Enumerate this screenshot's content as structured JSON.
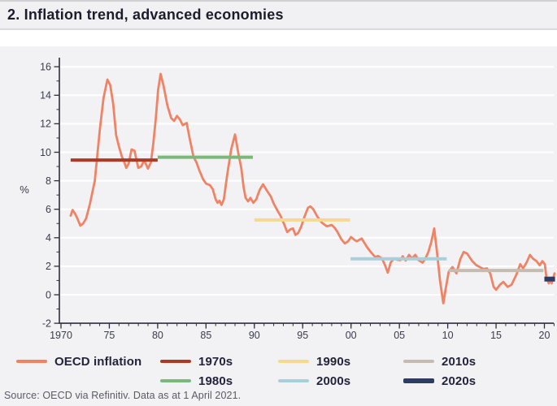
{
  "header": {
    "title": "2. Inflation trend, advanced economies"
  },
  "footer": {
    "source": "Source: OECD via Refinitiv. Data as at 1 April 2021."
  },
  "colors": {
    "titlebar_bg": "#f1f1f3",
    "panel_bg": "#f2f2f4",
    "gridline": "#ffffff",
    "axis": "#2e2e3e",
    "tick_label": "#3b3b4d",
    "oecd_line": "#ef8366",
    "avg_1970s": "#a93b28",
    "avg_1980s": "#7cb87c",
    "avg_1990s": "#f5d98e",
    "avg_2000s": "#a9cfda",
    "avg_2010s": "#c4bcb0",
    "avg_2020s": "#2c3c63"
  },
  "chart_data": {
    "type": "line",
    "title": "2. Inflation trend, advanced economies",
    "xlabel": "",
    "ylabel": "%",
    "ylim": [
      -2,
      16
    ],
    "xlim": [
      1969.6,
      2021.3
    ],
    "grid": "horizontal white gridlines every 2 units",
    "legend_position": "bottom",
    "y_ticks": [
      {
        "v": 16,
        "label": "16"
      },
      {
        "v": 14,
        "label": "14"
      },
      {
        "v": 12,
        "label": "12"
      },
      {
        "v": 10,
        "label": "10"
      },
      {
        "v": 8,
        "label": "8"
      },
      {
        "v": 6,
        "label": "6"
      },
      {
        "v": 4,
        "label": "4"
      },
      {
        "v": 2,
        "label": "2"
      },
      {
        "v": 0,
        "label": "0"
      },
      {
        "v": -2,
        "label": "-2"
      }
    ],
    "y_minor_ticks": [
      15,
      13,
      11,
      9,
      7,
      5,
      3,
      1,
      -1
    ],
    "x_ticks": [
      {
        "t": 1970,
        "label": "1970"
      },
      {
        "t": 1975,
        "label": "75"
      },
      {
        "t": 1980,
        "label": "80"
      },
      {
        "t": 1985,
        "label": "85"
      },
      {
        "t": 1990,
        "label": "90"
      },
      {
        "t": 1995,
        "label": "95"
      },
      {
        "t": 2000,
        "label": "00"
      },
      {
        "t": 2005,
        "label": "05"
      },
      {
        "t": 2010,
        "label": "10"
      },
      {
        "t": 2015,
        "label": "15"
      },
      {
        "t": 2020,
        "label": "20"
      }
    ],
    "x_minor_range": [
      1970,
      2021
    ],
    "series": [
      {
        "name": "OECD inflation",
        "color": "#ef8366",
        "unit": "% year-on-year",
        "points": [
          [
            1971.0,
            5.55
          ],
          [
            1971.2,
            5.95
          ],
          [
            1971.45,
            5.7
          ],
          [
            1971.7,
            5.35
          ],
          [
            1972.0,
            4.85
          ],
          [
            1972.3,
            5.0
          ],
          [
            1972.6,
            5.35
          ],
          [
            1973.0,
            6.4
          ],
          [
            1973.5,
            8.0
          ],
          [
            1974.0,
            11.5
          ],
          [
            1974.4,
            13.8
          ],
          [
            1974.8,
            15.1
          ],
          [
            1975.1,
            14.7
          ],
          [
            1975.4,
            13.4
          ],
          [
            1975.7,
            11.2
          ],
          [
            1976.0,
            10.4
          ],
          [
            1976.3,
            9.7
          ],
          [
            1976.55,
            9.3
          ],
          [
            1976.75,
            8.9
          ],
          [
            1977.0,
            9.2
          ],
          [
            1977.3,
            10.2
          ],
          [
            1977.6,
            10.1
          ],
          [
            1978.0,
            8.9
          ],
          [
            1978.3,
            9.0
          ],
          [
            1978.6,
            9.45
          ],
          [
            1979.0,
            8.85
          ],
          [
            1979.3,
            9.3
          ],
          [
            1979.55,
            10.6
          ],
          [
            1979.8,
            12.3
          ],
          [
            1980.05,
            14.4
          ],
          [
            1980.3,
            15.5
          ],
          [
            1980.6,
            14.7
          ],
          [
            1981.0,
            13.3
          ],
          [
            1981.4,
            12.4
          ],
          [
            1981.7,
            12.2
          ],
          [
            1982.0,
            12.55
          ],
          [
            1982.3,
            12.3
          ],
          [
            1982.6,
            11.9
          ],
          [
            1983.0,
            12.05
          ],
          [
            1983.3,
            11.0
          ],
          [
            1983.7,
            9.7
          ],
          [
            1984.0,
            9.3
          ],
          [
            1984.3,
            8.75
          ],
          [
            1984.7,
            8.1
          ],
          [
            1985.0,
            7.8
          ],
          [
            1985.4,
            7.7
          ],
          [
            1985.7,
            7.4
          ],
          [
            1986.0,
            6.7
          ],
          [
            1986.2,
            6.45
          ],
          [
            1986.4,
            6.6
          ],
          [
            1986.6,
            6.3
          ],
          [
            1986.85,
            6.7
          ],
          [
            1987.2,
            8.45
          ],
          [
            1987.6,
            10.2
          ],
          [
            1988.0,
            11.25
          ],
          [
            1988.35,
            9.9
          ],
          [
            1988.65,
            8.9
          ],
          [
            1988.9,
            7.5
          ],
          [
            1989.1,
            6.8
          ],
          [
            1989.35,
            6.55
          ],
          [
            1989.6,
            6.8
          ],
          [
            1989.9,
            6.45
          ],
          [
            1990.2,
            6.7
          ],
          [
            1990.55,
            7.35
          ],
          [
            1990.9,
            7.75
          ],
          [
            1991.3,
            7.3
          ],
          [
            1991.7,
            6.9
          ],
          [
            1992.0,
            6.4
          ],
          [
            1992.4,
            5.9
          ],
          [
            1992.7,
            5.55
          ],
          [
            1993.05,
            5.0
          ],
          [
            1993.4,
            4.4
          ],
          [
            1993.75,
            4.6
          ],
          [
            1994.0,
            4.65
          ],
          [
            1994.25,
            4.2
          ],
          [
            1994.55,
            4.35
          ],
          [
            1994.85,
            4.8
          ],
          [
            1995.2,
            5.5
          ],
          [
            1995.55,
            6.1
          ],
          [
            1995.8,
            6.2
          ],
          [
            1996.1,
            6.0
          ],
          [
            1996.5,
            5.5
          ],
          [
            1997.0,
            5.05
          ],
          [
            1997.5,
            4.8
          ],
          [
            1998.0,
            4.9
          ],
          [
            1998.3,
            4.7
          ],
          [
            1998.6,
            4.4
          ],
          [
            1999.0,
            3.9
          ],
          [
            1999.35,
            3.6
          ],
          [
            1999.7,
            3.75
          ],
          [
            2000.0,
            4.05
          ],
          [
            2000.35,
            3.85
          ],
          [
            2000.6,
            3.75
          ],
          [
            2001.1,
            3.95
          ],
          [
            2001.7,
            3.3
          ],
          [
            2002.1,
            2.95
          ],
          [
            2002.5,
            2.65
          ],
          [
            2002.8,
            2.72
          ],
          [
            2003.2,
            2.55
          ],
          [
            2003.5,
            2.1
          ],
          [
            2003.8,
            1.55
          ],
          [
            2004.1,
            2.25
          ],
          [
            2004.45,
            2.55
          ],
          [
            2004.8,
            2.45
          ],
          [
            2005.1,
            2.42
          ],
          [
            2005.35,
            2.7
          ],
          [
            2005.65,
            2.4
          ],
          [
            2006.0,
            2.8
          ],
          [
            2006.3,
            2.55
          ],
          [
            2006.65,
            2.8
          ],
          [
            2007.0,
            2.42
          ],
          [
            2007.4,
            2.25
          ],
          [
            2007.7,
            2.55
          ],
          [
            2008.0,
            3.0
          ],
          [
            2008.3,
            3.7
          ],
          [
            2008.6,
            4.65
          ],
          [
            2008.9,
            2.95
          ],
          [
            2009.2,
            1.0
          ],
          [
            2009.55,
            -0.6
          ],
          [
            2009.8,
            0.45
          ],
          [
            2010.1,
            1.6
          ],
          [
            2010.5,
            1.95
          ],
          [
            2010.9,
            1.5
          ],
          [
            2011.3,
            2.5
          ],
          [
            2011.65,
            3.0
          ],
          [
            2012.0,
            2.9
          ],
          [
            2012.5,
            2.4
          ],
          [
            2012.9,
            2.1
          ],
          [
            2013.3,
            1.95
          ],
          [
            2013.7,
            1.8
          ],
          [
            2014.05,
            1.85
          ],
          [
            2014.4,
            1.5
          ],
          [
            2014.75,
            0.55
          ],
          [
            2015.0,
            0.35
          ],
          [
            2015.4,
            0.7
          ],
          [
            2015.75,
            0.9
          ],
          [
            2016.2,
            0.55
          ],
          [
            2016.6,
            0.7
          ],
          [
            2017.1,
            1.4
          ],
          [
            2017.5,
            2.15
          ],
          [
            2017.8,
            1.85
          ],
          [
            2018.15,
            2.25
          ],
          [
            2018.5,
            2.8
          ],
          [
            2018.8,
            2.55
          ],
          [
            2019.2,
            2.35
          ],
          [
            2019.5,
            2.07
          ],
          [
            2019.8,
            2.36
          ],
          [
            2020.05,
            2.13
          ],
          [
            2020.2,
            1.26
          ],
          [
            2020.45,
            0.8
          ],
          [
            2020.6,
            1.1
          ],
          [
            2020.75,
            0.8
          ],
          [
            2021.05,
            1.5
          ]
        ]
      }
    ],
    "decade_averages": [
      {
        "name": "1970s",
        "start": 1971.0,
        "end": 1980.0,
        "value": 9.45,
        "color": "#a93b28",
        "thickness": 4
      },
      {
        "name": "1980s",
        "start": 1980.0,
        "end": 1989.85,
        "value": 9.65,
        "color": "#7cb87c",
        "thickness": 4
      },
      {
        "name": "1990s",
        "start": 1990.0,
        "end": 1999.9,
        "value": 5.25,
        "color": "#f5d98e",
        "thickness": 4
      },
      {
        "name": "2000s",
        "start": 1999.95,
        "end": 2009.9,
        "value": 2.52,
        "color": "#a9cfda",
        "thickness": 4
      },
      {
        "name": "2010s",
        "start": 2010.1,
        "end": 2019.9,
        "value": 1.7,
        "color": "#c4bcb0",
        "thickness": 4
      },
      {
        "name": "2020s",
        "start": 2020.0,
        "end": 2021.1,
        "value": 1.1,
        "color": "#2c3c63",
        "thickness": 6
      }
    ],
    "legend": [
      {
        "label": "OECD inflation",
        "color": "#ef8366"
      },
      {
        "label": "1970s",
        "color": "#a93b28"
      },
      {
        "label": "1980s",
        "color": "#7cb87c"
      },
      {
        "label": "1990s",
        "color": "#f5d98e"
      },
      {
        "label": "2000s",
        "color": "#a9cfda"
      },
      {
        "label": "2010s",
        "color": "#c4bcb0"
      },
      {
        "label": "2020s",
        "color": "#2c3c63"
      }
    ]
  }
}
